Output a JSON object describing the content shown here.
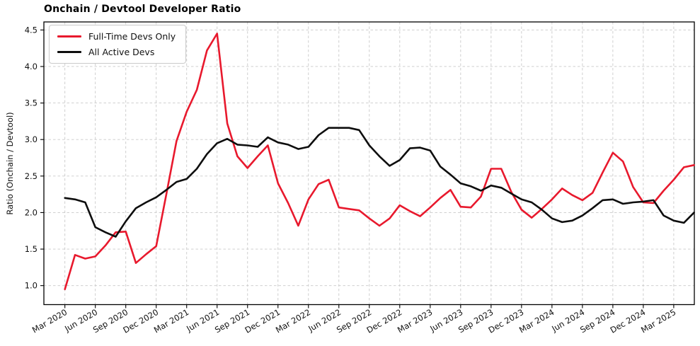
{
  "chart_data": {
    "type": "line",
    "title": "Onchain / Devtool Developer Ratio",
    "ylabel": "Ratio (Onchain / Devtool)",
    "grid": true,
    "legend_position": "upper left",
    "x_unit": "month",
    "n_points": 63,
    "x_start": "Mar 2020",
    "x_end": "May 2025",
    "xtick_every_months": 3,
    "xtick_labels": [
      "Mar 2020",
      "Jun 2020",
      "Sep 2020",
      "Dec 2020",
      "Mar 2021",
      "Jun 2021",
      "Sep 2021",
      "Dec 2021",
      "Mar 2022",
      "Jun 2022",
      "Sep 2022",
      "Dec 2022",
      "Mar 2023",
      "Jun 2023",
      "Sep 2023",
      "Dec 2023",
      "Mar 2024",
      "Jun 2024",
      "Sep 2024",
      "Dec 2024",
      "Mar 2025"
    ],
    "yticks": [
      1.0,
      1.5,
      2.0,
      2.5,
      3.0,
      3.5,
      4.0,
      4.5
    ],
    "ytick_labels": [
      "1.0",
      "1.5",
      "2.0",
      "2.5",
      "3.0",
      "3.5",
      "4.0",
      "4.5"
    ],
    "ylim": [
      0.74,
      4.61
    ],
    "xlim_months": [
      -2.07,
      62.03
    ],
    "grid_color": "#c9c9c9",
    "axis_color": "#000000",
    "series": [
      {
        "name": "Full-Time Devs Only",
        "color": "#e8192d",
        "values": [
          0.95,
          1.42,
          1.37,
          1.4,
          1.55,
          1.73,
          1.74,
          1.31,
          1.43,
          1.54,
          2.25,
          2.98,
          3.38,
          3.68,
          4.22,
          4.45,
          3.22,
          2.77,
          2.61,
          2.77,
          2.92,
          2.4,
          2.13,
          1.82,
          2.18,
          2.39,
          2.45,
          2.07,
          2.05,
          2.03,
          1.92,
          1.82,
          1.92,
          2.1,
          2.02,
          1.95,
          2.07,
          2.2,
          2.31,
          2.08,
          2.07,
          2.22,
          2.6,
          2.6,
          2.28,
          2.04,
          1.93,
          2.05,
          2.18,
          2.33,
          2.24,
          2.17,
          2.27,
          2.55,
          2.82,
          2.7,
          2.35,
          2.14,
          2.13,
          2.3,
          2.45,
          2.62,
          2.65
        ]
      },
      {
        "name": "All Active Devs",
        "color": "#0e0e0e",
        "values": [
          2.2,
          2.18,
          2.14,
          1.8,
          1.73,
          1.67,
          1.88,
          2.06,
          2.14,
          2.21,
          2.31,
          2.42,
          2.46,
          2.6,
          2.8,
          2.95,
          3.01,
          2.93,
          2.92,
          2.9,
          3.03,
          2.96,
          2.93,
          2.87,
          2.9,
          3.06,
          3.16,
          3.16,
          3.16,
          3.13,
          2.92,
          2.77,
          2.64,
          2.72,
          2.88,
          2.89,
          2.85,
          2.63,
          2.52,
          2.4,
          2.36,
          2.3,
          2.37,
          2.34,
          2.26,
          2.18,
          2.14,
          2.04,
          1.92,
          1.87,
          1.89,
          1.96,
          2.06,
          2.17,
          2.18,
          2.12,
          2.14,
          2.15,
          2.17,
          1.96,
          1.89,
          1.86,
          2.0
        ]
      }
    ]
  }
}
